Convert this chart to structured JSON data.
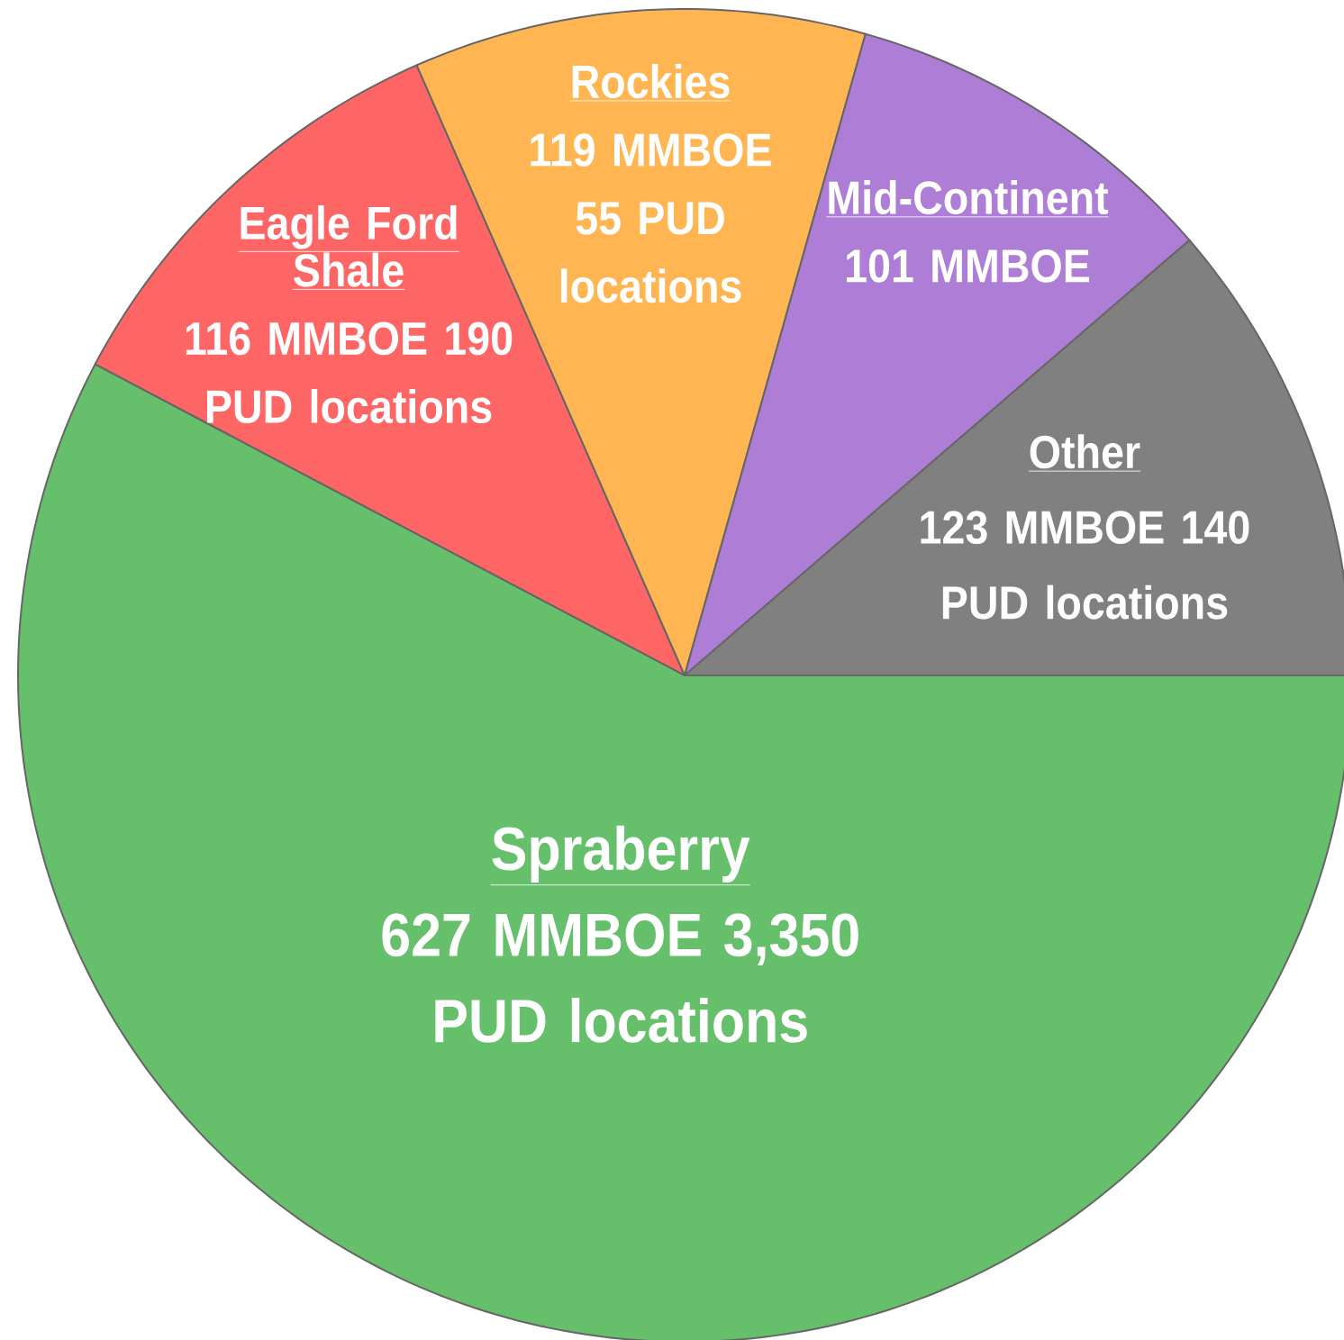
{
  "chart_data": {
    "type": "pie",
    "categories": [
      "Spraberry",
      "Eagle Ford Shale",
      "Rockies",
      "Mid-Continent",
      "Other"
    ],
    "values": [
      627,
      116,
      119,
      101,
      123
    ],
    "colors": [
      "#66bf6a",
      "#fe6666",
      "#ffb652",
      "#ae7dd6",
      "#808080"
    ],
    "value_labels": [
      "627 MMBOE 3,350 PUD locations",
      "116 MMBOE 190 PUD locations",
      "119 MMBOE 55 PUD locations",
      "101 MMBOE",
      "123 MMBOE 140 PUD locations"
    ]
  }
}
